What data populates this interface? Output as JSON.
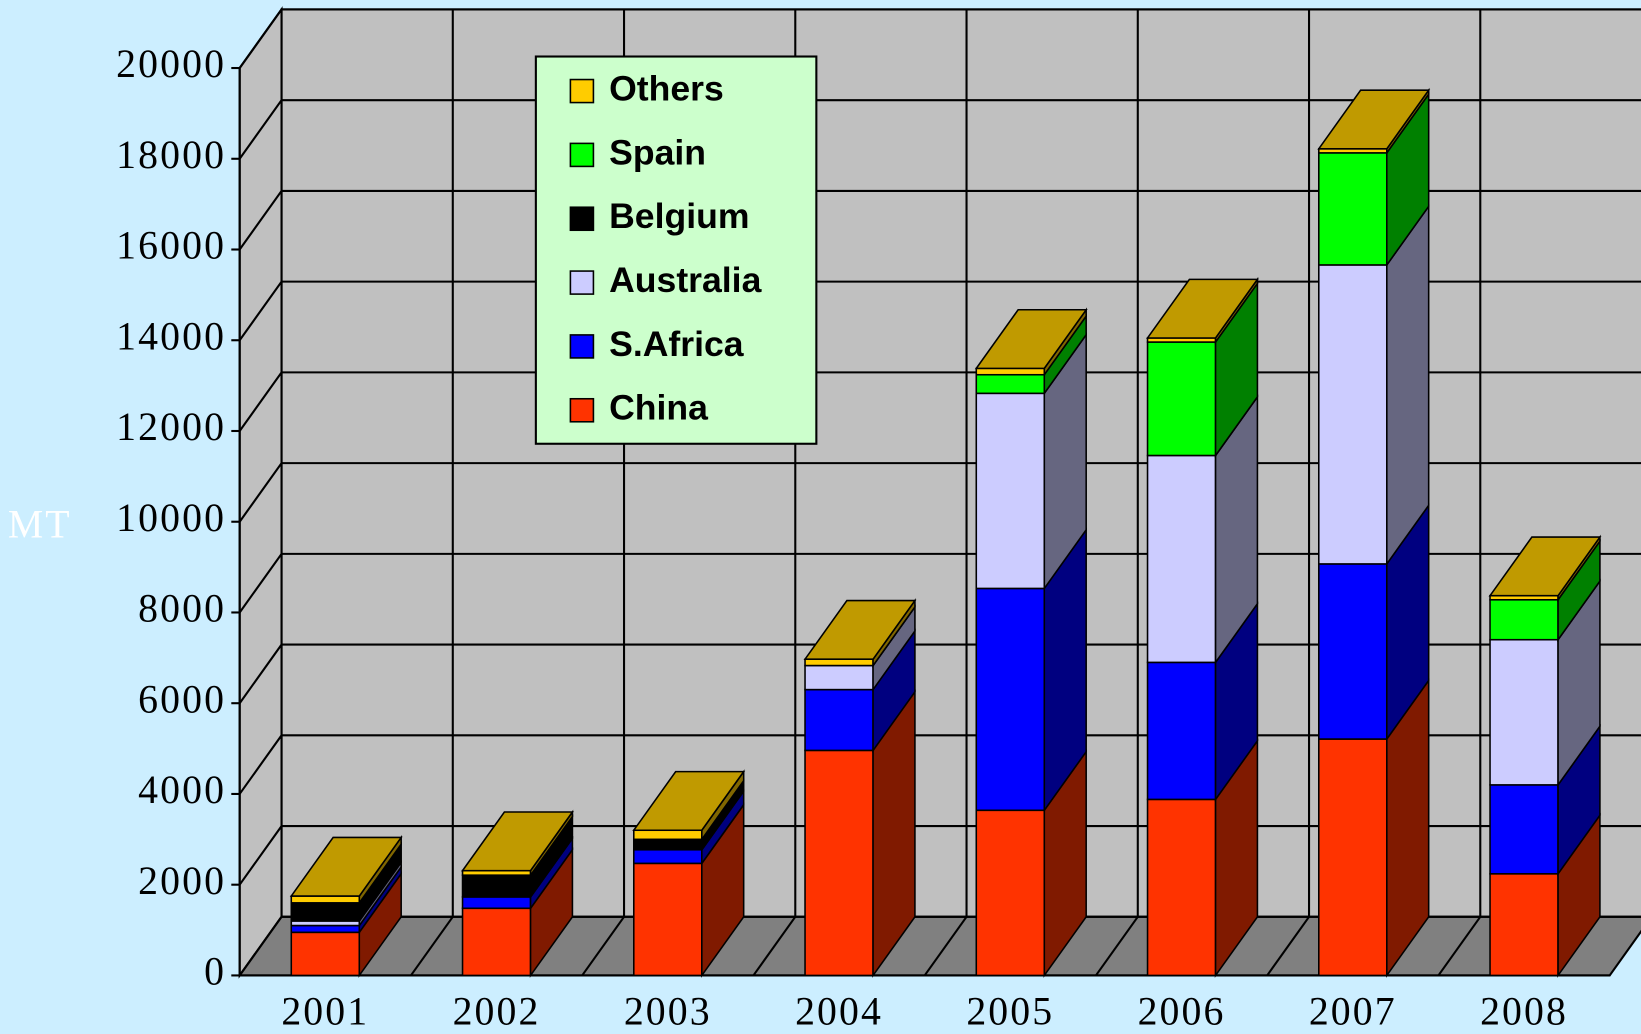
{
  "chart_data": {
    "type": "bar3d_stacked",
    "y_label": "MT",
    "categories": [
      "2001",
      "2002",
      "2003",
      "2004",
      "2005",
      "2006",
      "2007",
      "2008"
    ],
    "series": [
      {
        "name": "China",
        "color": "#ff3300",
        "side_color": "#801a00",
        "values": [
          950,
          1480,
          2470,
          4960,
          3640,
          3880,
          5210,
          2240
        ]
      },
      {
        "name": "S.Africa",
        "color": "#0000ff",
        "side_color": "#000080",
        "values": [
          150,
          250,
          300,
          1340,
          4890,
          3020,
          3860,
          1960
        ]
      },
      {
        "name": "Australia",
        "color": "#ccccff",
        "side_color": "#666680",
        "values": [
          100,
          0,
          0,
          530,
          4300,
          4560,
          6590,
          3200
        ]
      },
      {
        "name": "Belgium",
        "color": "#000000",
        "side_color": "#000000",
        "values": [
          400,
          480,
          230,
          0,
          0,
          0,
          0,
          0
        ]
      },
      {
        "name": "Spain",
        "color": "#00ff00",
        "side_color": "#008000",
        "values": [
          0,
          0,
          0,
          0,
          410,
          2500,
          2470,
          880
        ]
      },
      {
        "name": "Others",
        "color": "#ffcc00",
        "side_color": "#806600",
        "values": [
          150,
          100,
          200,
          140,
          140,
          90,
          90,
          90
        ]
      }
    ],
    "ylim": [
      0,
      20000
    ],
    "yticks": [
      0,
      2000,
      4000,
      6000,
      8000,
      10000,
      12000,
      14000,
      16000,
      18000,
      20000
    ],
    "grid": true
  }
}
